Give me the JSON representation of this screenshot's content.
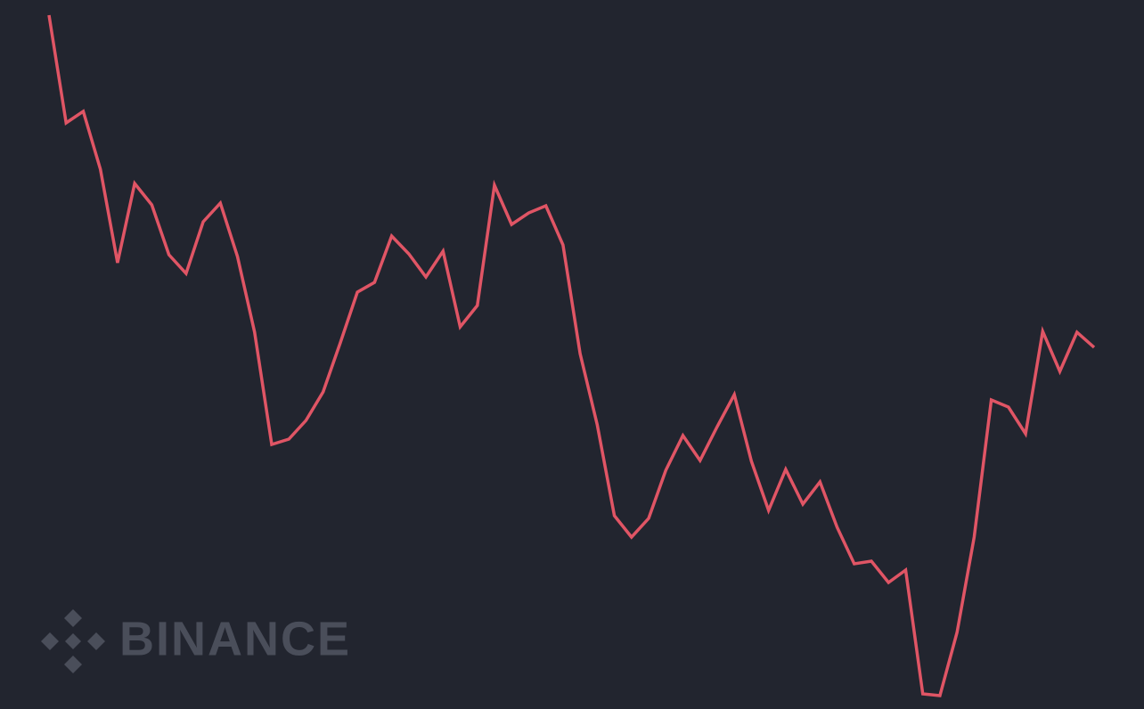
{
  "chart_data": {
    "type": "line",
    "watermark": "BINANCE",
    "categories": [
      null,
      null,
      null,
      null,
      null,
      null,
      null,
      null,
      null,
      null,
      null,
      null,
      null,
      null,
      null,
      null,
      null,
      null,
      null,
      null,
      null,
      null,
      null,
      null,
      null,
      null,
      null,
      null,
      null,
      null,
      null,
      null,
      null,
      null,
      null,
      null,
      null,
      null,
      null,
      null,
      null,
      null,
      null,
      null,
      null,
      null,
      null,
      null,
      null,
      null,
      null,
      null,
      null,
      null,
      null,
      null,
      null,
      null,
      null,
      null,
      null,
      null
    ],
    "series": [
      {
        "color": "#e05565",
        "values": [
          783,
          662,
          675,
          610,
          505,
          594,
          570,
          514,
          493,
          551,
          572,
          512,
          427,
          301,
          307,
          328,
          360,
          415,
          472,
          483,
          535,
          515,
          489,
          518,
          433,
          457,
          592,
          548,
          561,
          569,
          525,
          403,
          323,
          221,
          197,
          218,
          272,
          311,
          283,
          321,
          357,
          282,
          227,
          273,
          234,
          259,
          208,
          167,
          170,
          146,
          160,
          21,
          19,
          90,
          197,
          351,
          343,
          313,
          428,
          383,
          427,
          410
        ]
      }
    ],
    "ylim": [
      0,
      800
    ]
  }
}
